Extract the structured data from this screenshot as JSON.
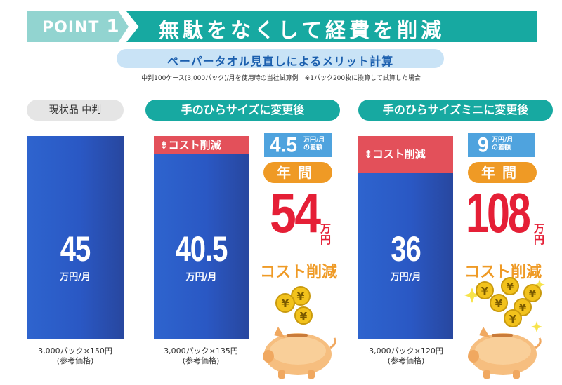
{
  "header": {
    "point_label": "POINT",
    "point_number": "1",
    "title": "無駄をなくして経費を削減"
  },
  "subtitle": "ペーパータオル見直しによるメリット計算",
  "note": "中判100ケース(3,000パック)/月を使用時の当社試算例　※1パック200枚に換算して試算した場合",
  "columns": [
    {
      "header": "現状品 中判",
      "value": "45",
      "unit": "万円/月",
      "caption_line1": "3,000パック×150円",
      "caption_line2": "(参考価格)"
    },
    {
      "header": "手のひらサイズに変更後",
      "value": "40.5",
      "unit": "万円/月",
      "cost_cut_label": "コスト削減",
      "diff_value": "4.5",
      "diff_unit_line1": "万円/月",
      "diff_unit_line2": "の差額",
      "annual_label": "年間",
      "annual_amount": "54",
      "annual_unit_line1": "万",
      "annual_unit_line2": "円",
      "annual_cost_cut": "コスト削減",
      "caption_line1": "3,000パック×135円",
      "caption_line2": "(参考価格)"
    },
    {
      "header": "手のひらサイズミニに変更後",
      "value": "36",
      "unit": "万円/月",
      "cost_cut_label": "コスト削減",
      "diff_value": "9",
      "diff_unit_line1": "万円/月",
      "diff_unit_line2": "の差額",
      "annual_label": "年間",
      "annual_amount": "108",
      "annual_unit_line1": "万",
      "annual_unit_line2": "円",
      "annual_cost_cut": "コスト削減",
      "caption_line1": "3,000パック×120円",
      "caption_line2": "(参考価格)"
    }
  ],
  "colors": {
    "teal": "#17a9a1",
    "light_teal": "#92d4d0",
    "blue_bar": "#2a58c4",
    "red": "#e3505a",
    "bright_red": "#e51f36",
    "orange": "#ef9a25",
    "light_blue": "#4fa3de",
    "coin": "#f2c21c",
    "pig": "#f6be7f"
  },
  "icons": [
    "yen-coin-icon",
    "piggy-bank-icon",
    "down-arrow-icon",
    "sparkle-icon"
  ]
}
